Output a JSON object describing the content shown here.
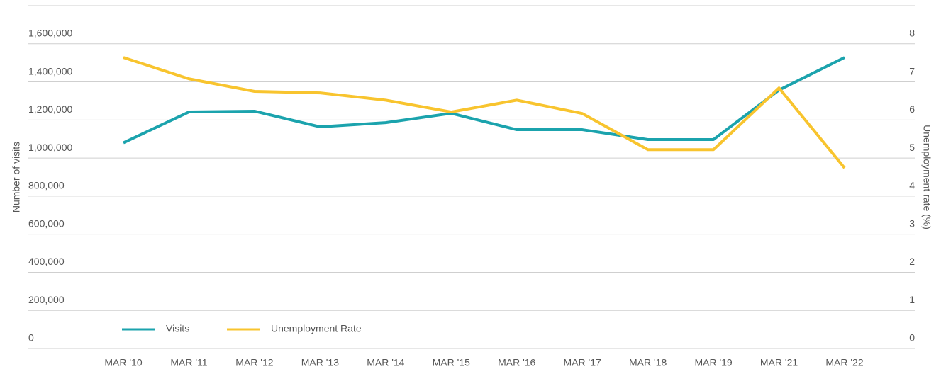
{
  "chart_data": {
    "type": "line",
    "categories": [
      "MAR '10",
      "MAR '11",
      "MAR '12",
      "MAR '13",
      "MAR '14",
      "MAR '15",
      "MAR '16",
      "MAR '17",
      "MAR '18",
      "MAR '19",
      "MAR '21",
      "MAR '22"
    ],
    "ylabel": "Number of visits",
    "y2label": "Unemployment rate (%)",
    "series": [
      {
        "name": "Visits",
        "color": "#1ba3ad",
        "values": [
          1080000,
          1242000,
          1246000,
          1164000,
          1186000,
          1235000,
          1149000,
          1149000,
          1097000,
          1097000,
          1357000,
          1528000
        ]
      },
      {
        "name": "Unemployment Rate",
        "color": "#f8c42e",
        "axis": "y2",
        "values": [
          7.64,
          7.08,
          6.75,
          6.71,
          6.52,
          6.21,
          6.52,
          6.17,
          5.22,
          5.22,
          6.84,
          4.74
        ]
      }
    ],
    "ylim": [
      0,
      1800000
    ],
    "yticks": [
      0,
      {
        "value": 200000,
        "label": "200,000"
      },
      {
        "value": 400000,
        "label": "400,000"
      },
      {
        "value": 600000,
        "label": "600,000"
      },
      {
        "value": 800000,
        "label": "800,000"
      },
      {
        "value": 1000000,
        "label": "1,000,000"
      },
      {
        "value": 1200000,
        "label": "1,200,000"
      },
      {
        "value": 1400000,
        "label": "1,400,000"
      },
      {
        "value": 1600000,
        "label": "1,600,000"
      }
    ],
    "y2lim": [
      0,
      9
    ],
    "y2ticks": [
      0,
      1,
      2,
      3,
      4,
      5,
      6,
      7,
      8
    ],
    "grid": true,
    "legend": "lower left"
  }
}
